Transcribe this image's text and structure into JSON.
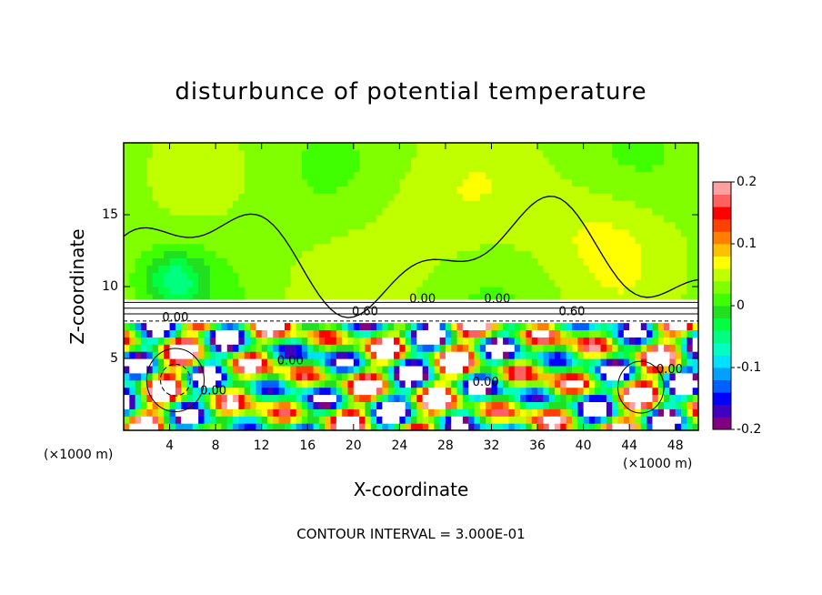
{
  "title": "disturbunce of potential temperature",
  "footnote": "CONTOUR INTERVAL = 3.000E-01",
  "chart_data": {
    "type": "heatmap",
    "title": "disturbunce of potential temperature",
    "xlabel": "X-coordinate",
    "ylabel": "Z-coordinate",
    "x_unit": "(×1000 m)",
    "xlim": [
      0,
      50
    ],
    "ylim": [
      0,
      20
    ],
    "x_ticks": [
      4,
      8,
      12,
      16,
      20,
      24,
      28,
      32,
      36,
      40,
      44,
      48
    ],
    "y_ticks": [
      5,
      10,
      15
    ],
    "colorbar": {
      "range": [
        -0.2,
        0.2
      ],
      "ticks": [
        "0.2",
        "0.1",
        "0",
        "-0.1",
        "-0.2"
      ],
      "tick_values": [
        0.2,
        0.1,
        0,
        -0.1,
        -0.2
      ],
      "colors": [
        "#800080",
        "#4000c0",
        "#0000ff",
        "#0060ff",
        "#00a0ff",
        "#00e0ff",
        "#00ffc0",
        "#00ff80",
        "#00ff40",
        "#20e020",
        "#40ff00",
        "#80ff00",
        "#c0ff00",
        "#ffff00",
        "#ffc000",
        "#ff8000",
        "#ff4000",
        "#ff0000",
        "#ff6060",
        "#ffa0a0"
      ]
    },
    "contour_labels": [
      {
        "text": "0.00",
        "x": 4.5,
        "z": 7.6
      },
      {
        "text": "0.60",
        "x": 21,
        "z": 8.0
      },
      {
        "text": "0.00",
        "x": 26,
        "z": 8.9
      },
      {
        "text": "0.00",
        "x": 32.5,
        "z": 8.9
      },
      {
        "text": "0.60",
        "x": 39,
        "z": 8.0
      },
      {
        "text": "0.00",
        "x": 31.5,
        "z": 3.1
      },
      {
        "text": "0.00",
        "x": 7.8,
        "z": 2.5
      },
      {
        "text": "0.00",
        "x": 14.5,
        "z": 4.6
      },
      {
        "text": "0.00",
        "x": 47.5,
        "z": 4.0
      }
    ],
    "contour_interval": "3.000E-01"
  }
}
